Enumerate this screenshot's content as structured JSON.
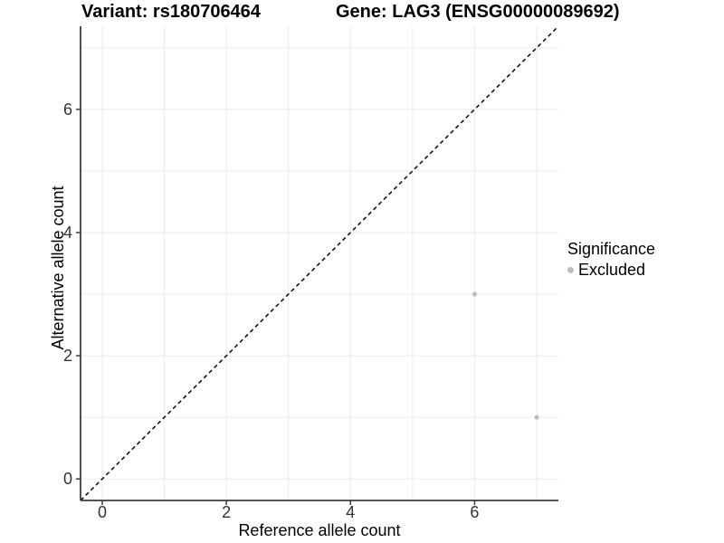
{
  "titles": {
    "left": "Variant: rs180706464",
    "right": "Gene: LAG3 (ENSG00000089692)"
  },
  "chart_data": {
    "type": "scatter",
    "xlabel": "Reference allele count",
    "ylabel": "Alternative allele count",
    "xlim": [
      -0.35,
      7.35
    ],
    "ylim": [
      -0.35,
      7.35
    ],
    "x_ticks": [
      0,
      2,
      4,
      6
    ],
    "y_ticks": [
      0,
      2,
      4,
      6
    ],
    "grid_values": [
      0,
      1,
      2,
      3,
      4,
      5,
      6,
      7
    ],
    "grid": true,
    "legend": {
      "title": "Significance",
      "position": "right",
      "items": [
        {
          "label": "Excluded",
          "color": "#bdbdbd"
        }
      ]
    },
    "series": [
      {
        "name": "Excluded",
        "color": "#bdbdbd",
        "points": [
          [
            6,
            3
          ],
          [
            7,
            1
          ]
        ]
      }
    ],
    "reference_line": {
      "slope": 1,
      "intercept": 0,
      "style": "dashed",
      "color": "#141414"
    }
  },
  "colors": {
    "grid": "#ebebeb",
    "axis": "#3c3c3c",
    "tick_text": "#333333",
    "point": "#bdbdbd"
  }
}
